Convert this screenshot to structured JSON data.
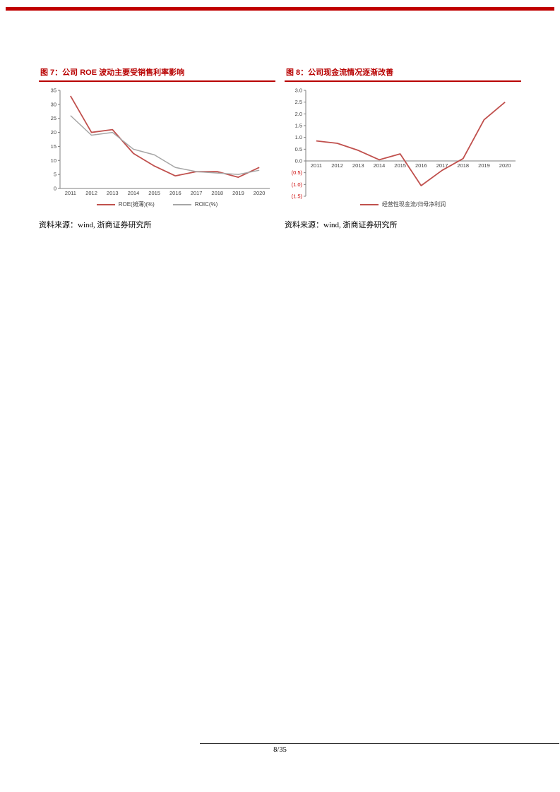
{
  "page": {
    "footer": {
      "page_label": "8/35"
    }
  },
  "figures": [
    {
      "title": "图 7：公司 ROE 波动主要受销售利率影响",
      "source": "资料来源：wind, 浙商证券研究所"
    },
    {
      "title": "图 8：公司现金流情况逐渐改善",
      "source": "资料来源：wind, 浙商证券研究所"
    }
  ],
  "chart_data": [
    {
      "type": "line",
      "title": "图 7：公司 ROE 波动主要受销售利率影响",
      "categories": [
        "2011",
        "2012",
        "2013",
        "2014",
        "2015",
        "2016",
        "2017",
        "2018",
        "2019",
        "2020"
      ],
      "series": [
        {
          "name": "ROE(摊薄)(%)",
          "color": "#c0504d",
          "values": [
            33,
            20,
            21,
            12.5,
            8,
            4.5,
            6,
            6,
            4,
            7.5
          ]
        },
        {
          "name": "ROIC(%)",
          "color": "#a6a6a6",
          "values": [
            26,
            19,
            20,
            14,
            12,
            7.5,
            6,
            5.5,
            5,
            6.5
          ]
        }
      ],
      "ylim": [
        0,
        35
      ],
      "yticks": [
        {
          "v": 35,
          "label": "35"
        },
        {
          "v": 30,
          "label": "30"
        },
        {
          "v": 25,
          "label": "25"
        },
        {
          "v": 20,
          "label": "20"
        },
        {
          "v": 15,
          "label": "15"
        },
        {
          "v": 10,
          "label": "10"
        },
        {
          "v": 5,
          "label": "5"
        },
        {
          "v": 0,
          "label": "0"
        }
      ],
      "grid": false,
      "legend_position": "bottom",
      "colors": {
        "axis": "#7f7f7f",
        "tick_text": "#404040",
        "negative_ticks": "#cc0000"
      }
    },
    {
      "type": "line",
      "title": "图 8：公司现金流情况逐渐改善",
      "categories": [
        "2011",
        "2012",
        "2013",
        "2014",
        "2015",
        "2016",
        "2017",
        "2018",
        "2019",
        "2020"
      ],
      "series": [
        {
          "name": "经营性现金流/归母净利润",
          "color": "#c0504d",
          "values": [
            0.85,
            0.75,
            0.45,
            0.05,
            0.3,
            -1.05,
            -0.4,
            0.1,
            1.75,
            2.5
          ]
        }
      ],
      "ylim": [
        -1.5,
        3.0
      ],
      "yticks": [
        {
          "v": 3.0,
          "label": "3.0"
        },
        {
          "v": 2.5,
          "label": "2.5"
        },
        {
          "v": 2.0,
          "label": "2.0"
        },
        {
          "v": 1.5,
          "label": "1.5"
        },
        {
          "v": 1.0,
          "label": "1.0"
        },
        {
          "v": 0.5,
          "label": "0.5"
        },
        {
          "v": 0.0,
          "label": "0.0"
        },
        {
          "v": -0.5,
          "label": "(0.5)",
          "negative": true
        },
        {
          "v": -1.0,
          "label": "(1.0)",
          "negative": true
        },
        {
          "v": -1.5,
          "label": "(1.5)",
          "negative": true
        }
      ],
      "grid": false,
      "legend_position": "bottom",
      "colors": {
        "axis": "#7f7f7f",
        "tick_text": "#404040",
        "negative_ticks": "#cc0000"
      }
    }
  ]
}
